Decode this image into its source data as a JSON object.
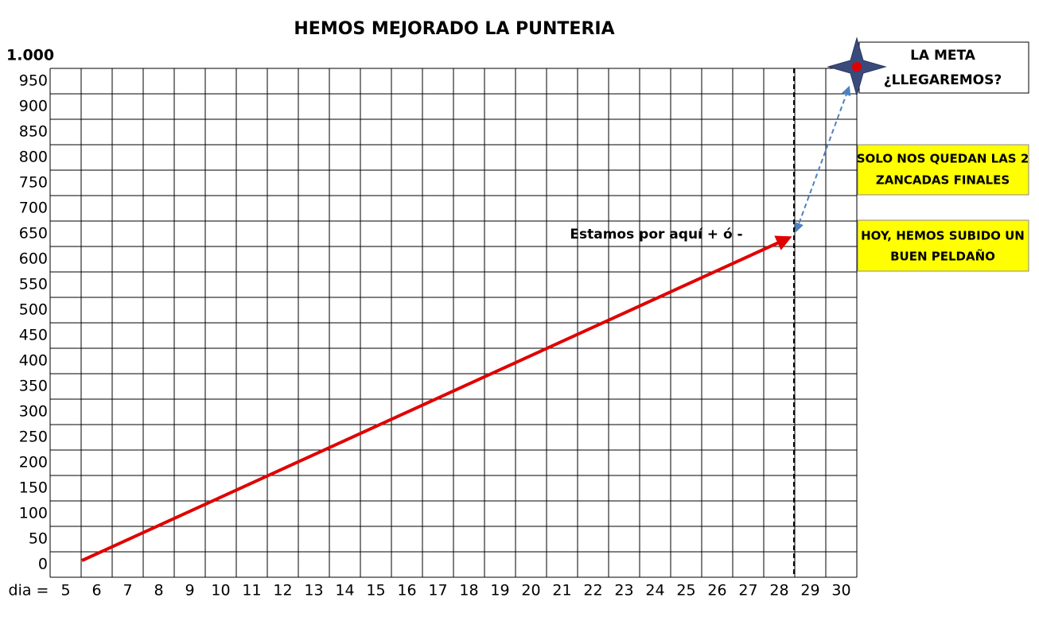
{
  "title": "HEMOS MEJORADO LA PUNTERIA",
  "y_labels": [
    "1.000",
    "950",
    "900",
    "850",
    "800",
    "750",
    "700",
    "650",
    "600",
    "550",
    "500",
    "450",
    "400",
    "350",
    "300",
    "250",
    "200",
    "150",
    "100",
    "50",
    "0"
  ],
  "x_prefix": "dia =",
  "x_labels": [
    "5",
    "6",
    "7",
    "8",
    "9",
    "10",
    "11",
    "12",
    "13",
    "14",
    "15",
    "16",
    "17",
    "18",
    "19",
    "20",
    "21",
    "22",
    "23",
    "24",
    "25",
    "26",
    "27",
    "28",
    "29",
    "30"
  ],
  "marker_label": "Estamos por aquí + ó -",
  "goal_box": [
    "LA META",
    "¿LLEGAREMOS?"
  ],
  "note_top": [
    "SOLO NOS QUEDAN LAS 2",
    "ZANCADAS FINALES"
  ],
  "note_bottom": [
    "HOY, HEMOS SUBIDO UN",
    "BUEN PELDAÑO"
  ]
}
